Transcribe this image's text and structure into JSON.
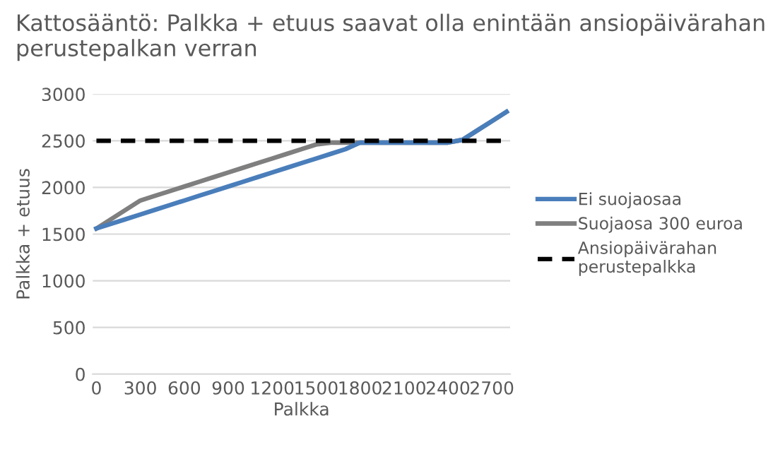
{
  "chart_data": {
    "type": "line",
    "title": "Kattosääntö: Palkka + etuus saavat olla enintään ansiopäivärahan perustepalkan verran",
    "xlabel": "Palkka",
    "ylabel": "Palkka + etuus",
    "x": [
      0,
      100,
      200,
      300,
      400,
      500,
      600,
      700,
      800,
      900,
      1000,
      1100,
      1200,
      1300,
      1400,
      1500,
      1600,
      1700,
      1800,
      1900,
      2000,
      2100,
      2200,
      2300,
      2400,
      2500,
      2600,
      2700,
      2800
    ],
    "series": [
      {
        "name": "Ei suojaosaa",
        "color": "#4a7ebb",
        "values": [
          1560,
          1610,
          1660,
          1710,
          1760,
          1810,
          1860,
          1910,
          1960,
          2010,
          2060,
          2110,
          2160,
          2210,
          2260,
          2310,
          2360,
          2410,
          2480,
          2480,
          2480,
          2480,
          2480,
          2480,
          2480,
          2510,
          2610,
          2710,
          2810
        ]
      },
      {
        "name": "Suojaosa 300 euroa",
        "color": "#7f7f7f",
        "values": [
          1560,
          1660,
          1760,
          1860,
          1910,
          1960,
          2010,
          2060,
          2110,
          2160,
          2210,
          2260,
          2310,
          2360,
          2410,
          2460,
          2480,
          2480,
          2480,
          2480,
          2480,
          2480,
          2480,
          2480,
          2480,
          2510,
          2610,
          2710,
          2810
        ]
      },
      {
        "name": "Ansiopäivärahan perustepalkka",
        "color": "#000000",
        "line_style": "dashed",
        "values": [
          2500,
          2500,
          2500,
          2500,
          2500,
          2500,
          2500,
          2500,
          2500,
          2500,
          2500,
          2500,
          2500,
          2500,
          2500,
          2500,
          2500,
          2500,
          2500,
          2500,
          2500,
          2500,
          2500,
          2500,
          2500,
          2500,
          2500,
          2500,
          2500
        ]
      }
    ],
    "xlim": [
      -25,
      2825
    ],
    "xticks": [
      0,
      300,
      600,
      900,
      1200,
      1500,
      1800,
      2100,
      2400,
      2700
    ],
    "ylim": [
      0,
      3000
    ],
    "yticks": [
      0,
      500,
      1000,
      1500,
      2000,
      2500,
      3000
    ],
    "grid": "y",
    "legend": "right",
    "marker": "none"
  }
}
